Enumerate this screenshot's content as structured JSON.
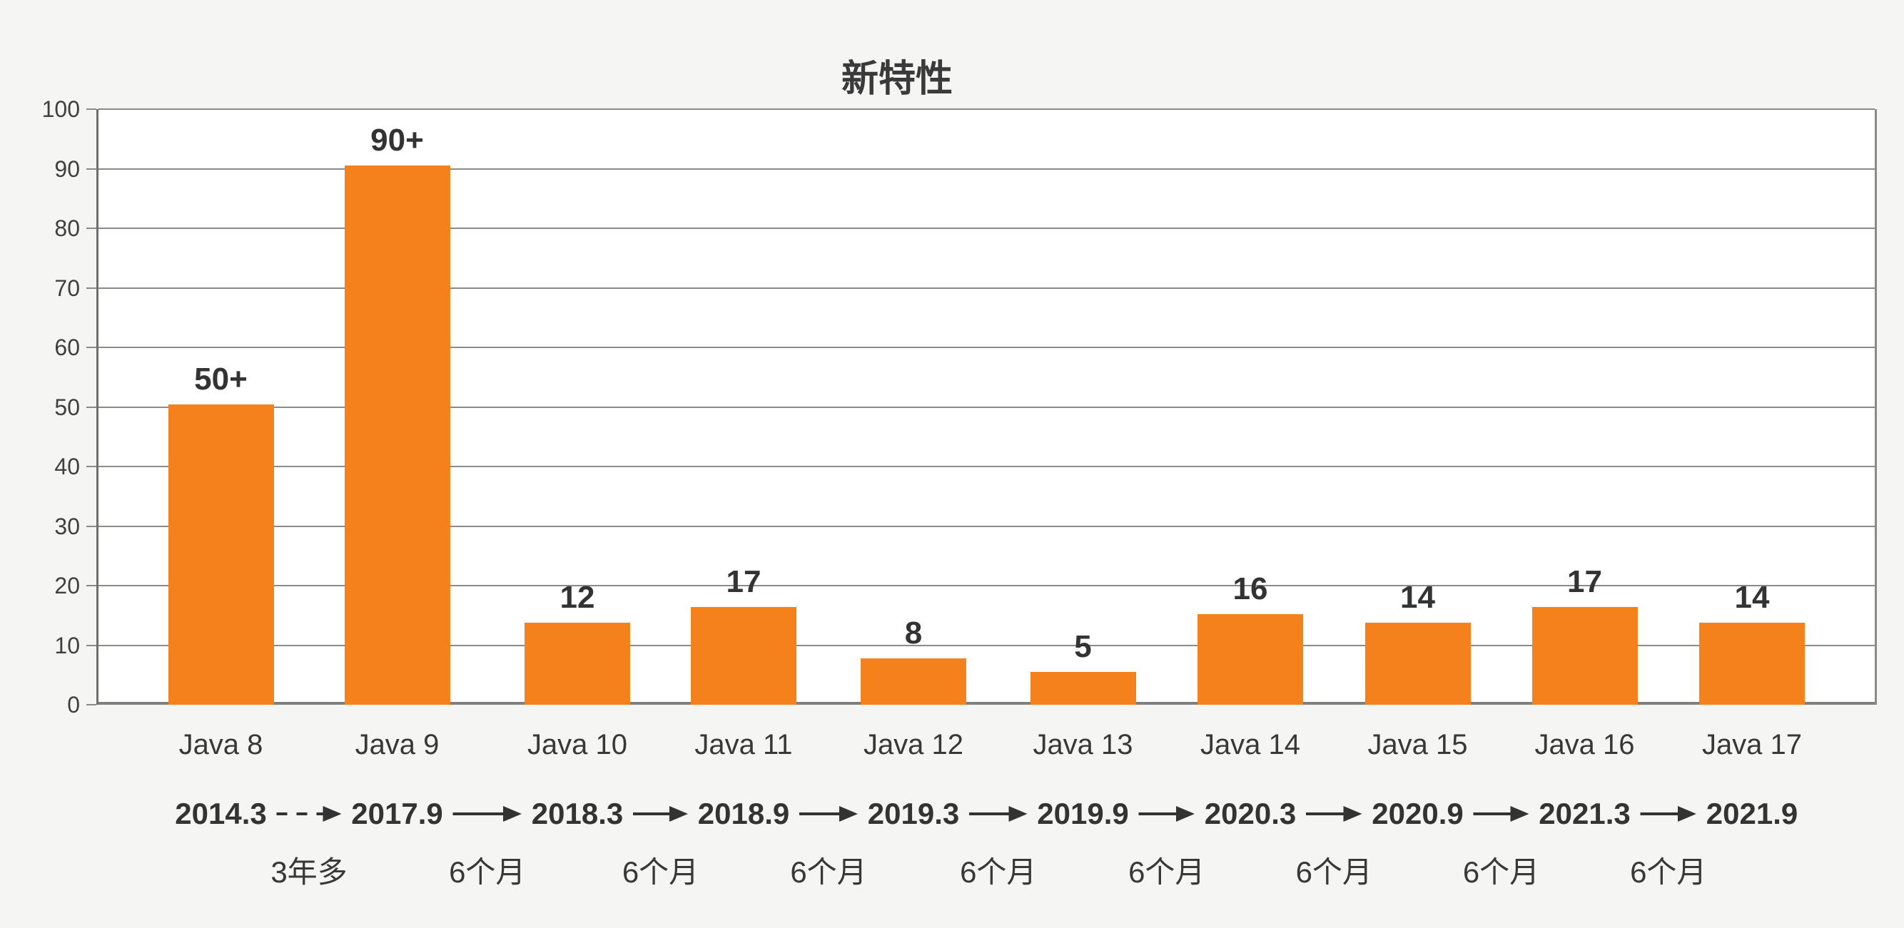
{
  "chart_data": {
    "type": "bar",
    "title": "新特性",
    "categories": [
      "Java 8",
      "Java 9",
      "Java 10",
      "Java 11",
      "Java 12",
      "Java 13",
      "Java 14",
      "Java 15",
      "Java 16",
      "Java 17"
    ],
    "values": [
      50,
      90,
      12,
      17,
      8,
      5,
      16,
      14,
      17,
      14
    ],
    "bar_labels": [
      "50+",
      "90+",
      "12",
      "17",
      "8",
      "5",
      "16",
      "14",
      "17",
      "14"
    ],
    "drawn_heights": [
      50.4,
      90.5,
      13.8,
      16.4,
      7.8,
      5.5,
      15.2,
      13.8,
      16.4,
      13.8
    ],
    "xlabel": "",
    "ylabel": "",
    "ylim": [
      0,
      100
    ],
    "yticks": [
      0,
      10,
      20,
      30,
      40,
      50,
      60,
      70,
      80,
      90,
      100
    ],
    "grid": true,
    "legend": false,
    "release_dates": [
      "2014.3",
      "2017.9",
      "2018.3",
      "2018.9",
      "2019.3",
      "2019.9",
      "2020.3",
      "2020.9",
      "2021.3",
      "2021.9"
    ],
    "intervals": [
      "3年多",
      "6个月",
      "6个月",
      "6个月",
      "6个月",
      "6个月",
      "6个月",
      "6个月",
      "6个月"
    ],
    "arrow_styles": [
      "dashed",
      "solid",
      "solid",
      "solid",
      "solid",
      "solid",
      "solid",
      "solid",
      "solid"
    ]
  },
  "colors": {
    "bar": "#f4811c",
    "text": "#333333",
    "grid": "#8a8a8a",
    "axis": "#7f7f7f",
    "background": "#f5f5f4",
    "plot_background": "#ffffff"
  }
}
